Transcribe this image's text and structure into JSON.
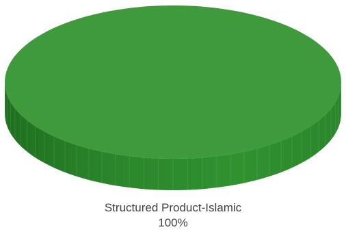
{
  "chart_data": {
    "type": "pie",
    "style": "3d",
    "slices": [
      {
        "label": "Structured Product-Islamic",
        "value": 100,
        "percent_label": "100%",
        "color": "#3f9a3b"
      }
    ]
  },
  "colors": {
    "slice_top": "#3f9a3b",
    "slice_side": "#2c8a2c",
    "slice_side_dark": "#1f6f1f",
    "label_text": "#404040"
  }
}
